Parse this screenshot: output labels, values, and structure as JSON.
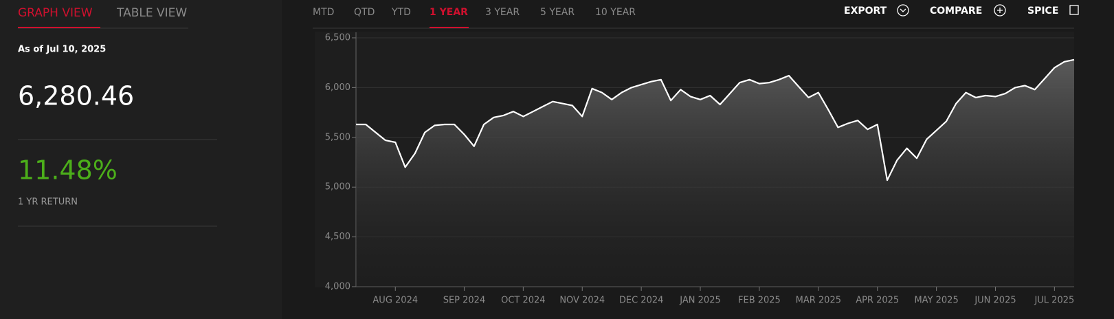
{
  "tabs": [
    "GRAPH VIEW",
    "TABLE VIEW"
  ],
  "as_of": "As of Jul 10, 2025",
  "price": "6,280.46",
  "return_value": "11.48%",
  "return_label": "1 YR RETURN",
  "periods": [
    "MTD",
    "QTD",
    "YTD",
    "1 YEAR",
    "3 YEAR",
    "5 YEAR",
    "10 YEAR"
  ],
  "actions": [
    "EXPORT",
    "COMPARE",
    "SPICE"
  ],
  "chart_data": {
    "type": "line",
    "color": "#ffffff",
    "categories": [
      null,
      null,
      null,
      null,
      "AUG 2024",
      null,
      null,
      null,
      null,
      null,
      null,
      "SEP 2024",
      null,
      null,
      null,
      null,
      null,
      "OCT 2024",
      null,
      null,
      null,
      null,
      null,
      "NOV 2024",
      null,
      null,
      null,
      null,
      null,
      "DEC 2024",
      null,
      null,
      null,
      null,
      null,
      "JAN 2025",
      null,
      null,
      null,
      null,
      null,
      "FEB 2025",
      null,
      null,
      null,
      null,
      null,
      "MAR 2025",
      null,
      null,
      null,
      null,
      null,
      "APR 2025",
      null,
      null,
      null,
      null,
      null,
      "MAY 2025",
      null,
      null,
      null,
      null,
      null,
      "JUN 2025",
      null,
      null,
      null,
      null,
      null,
      "JUL 2025",
      null,
      null
    ],
    "values": [
      5630,
      5630,
      5550,
      5470,
      5450,
      5200,
      5340,
      5550,
      5620,
      5630,
      5630,
      5530,
      5410,
      5630,
      5700,
      5720,
      5760,
      5710,
      5760,
      5810,
      5860,
      5840,
      5820,
      5710,
      5990,
      5950,
      5880,
      5950,
      6000,
      6030,
      6060,
      6080,
      5870,
      5980,
      5910,
      5880,
      5920,
      5830,
      5940,
      6050,
      6080,
      6040,
      6050,
      6080,
      6120,
      6010,
      5900,
      5950,
      5780,
      5600,
      5640,
      5670,
      5580,
      5630,
      5070,
      5270,
      5390,
      5290,
      5480,
      5570,
      5660,
      5840,
      5950,
      5900,
      5920,
      5910,
      5940,
      6000,
      6020,
      5980,
      6090,
      6200,
      6260,
      6280.46
    ],
    "ylim": [
      4000,
      6500
    ],
    "yticks": [
      {
        "value": 4000,
        "label": "4,000"
      },
      {
        "value": 4500,
        "label": "4,500"
      },
      {
        "value": 5000,
        "label": "5,000"
      },
      {
        "value": 5500,
        "label": "5,500"
      },
      {
        "value": 6000,
        "label": "6,000"
      },
      {
        "value": 6500,
        "label": "6,500"
      }
    ],
    "grid": true
  }
}
